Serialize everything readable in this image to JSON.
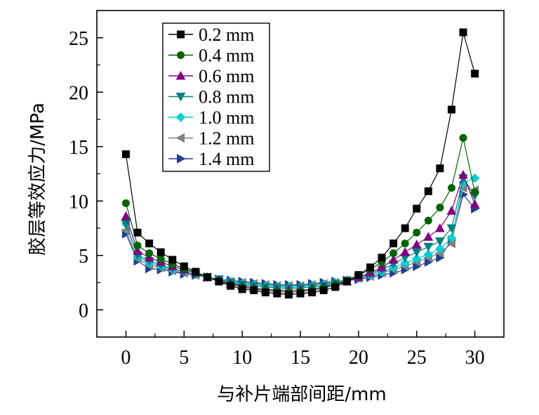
{
  "chart_data": {
    "type": "line",
    "xlabel": "与补片端部间距/mm",
    "ylabel": "胶层等效应力/MPa",
    "xlim": [
      -2.5,
      32.5
    ],
    "ylim": [
      -2.5,
      27.5
    ],
    "xticks": [
      0,
      5,
      10,
      15,
      20,
      25,
      30
    ],
    "yticks": [
      0,
      5,
      10,
      15,
      20,
      25
    ],
    "grid": false,
    "legend_position": "top-left",
    "x": [
      0,
      1,
      2,
      3,
      4,
      5,
      6,
      7,
      8,
      9,
      10,
      11,
      12,
      13,
      14,
      15,
      16,
      17,
      18,
      19,
      20,
      21,
      22,
      23,
      24,
      25,
      26,
      27,
      28,
      29,
      30
    ],
    "series": [
      {
        "name": "0.2 mm",
        "color": "#000000",
        "marker": "square",
        "values": [
          14.3,
          7.1,
          6.1,
          5.3,
          4.6,
          4.0,
          3.5,
          3.0,
          2.6,
          2.2,
          1.9,
          1.8,
          1.6,
          1.5,
          1.4,
          1.5,
          1.6,
          1.8,
          2.1,
          2.6,
          3.2,
          3.9,
          4.8,
          6.1,
          7.5,
          9.3,
          10.9,
          13.0,
          18.4,
          25.5,
          21.7
        ]
      },
      {
        "name": "0.4 mm",
        "color": "#006400",
        "marker": "circle",
        "values": [
          9.8,
          5.9,
          5.2,
          4.7,
          4.2,
          3.8,
          3.4,
          3.0,
          2.6,
          2.3,
          2.1,
          1.9,
          1.8,
          1.7,
          1.6,
          1.7,
          1.8,
          2.0,
          2.3,
          2.7,
          3.2,
          3.7,
          4.4,
          5.2,
          6.1,
          7.1,
          8.2,
          9.4,
          11.2,
          15.8,
          10.8
        ]
      },
      {
        "name": "0.6 mm",
        "color": "#800080",
        "marker": "triangle-up",
        "values": [
          8.6,
          5.4,
          4.8,
          4.4,
          4.0,
          3.7,
          3.4,
          3.0,
          2.7,
          2.4,
          2.2,
          2.0,
          1.9,
          1.8,
          1.8,
          1.8,
          1.9,
          2.1,
          2.3,
          2.6,
          3.0,
          3.4,
          3.9,
          4.6,
          5.3,
          6.0,
          6.7,
          7.5,
          9.1,
          12.4,
          9.7
        ]
      },
      {
        "name": "0.8 mm",
        "color": "#008080",
        "marker": "triangle-down",
        "values": [
          7.9,
          5.0,
          4.5,
          4.1,
          3.8,
          3.5,
          3.3,
          3.0,
          2.8,
          2.5,
          2.3,
          2.2,
          2.1,
          2.0,
          2.0,
          2.0,
          2.1,
          2.2,
          2.4,
          2.7,
          3.0,
          3.3,
          3.7,
          4.2,
          4.8,
          5.3,
          5.8,
          6.3,
          7.5,
          12.1,
          10.5
        ]
      },
      {
        "name": "1.0 mm",
        "color": "#00CED1",
        "marker": "diamond",
        "values": [
          7.9,
          4.9,
          4.3,
          4.0,
          3.7,
          3.5,
          3.3,
          3.0,
          2.8,
          2.6,
          2.4,
          2.3,
          2.2,
          2.1,
          2.1,
          2.1,
          2.2,
          2.3,
          2.5,
          2.7,
          2.9,
          3.2,
          3.5,
          3.9,
          4.3,
          4.7,
          5.1,
          5.6,
          6.6,
          11.7,
          12.1
        ]
      },
      {
        "name": "1.2 mm",
        "color": "#808080",
        "marker": "triangle-left",
        "values": [
          7.3,
          4.7,
          4.1,
          3.9,
          3.6,
          3.4,
          3.2,
          3.0,
          2.8,
          2.6,
          2.5,
          2.4,
          2.3,
          2.2,
          2.2,
          2.2,
          2.3,
          2.4,
          2.5,
          2.7,
          2.9,
          3.1,
          3.4,
          3.7,
          4.0,
          4.4,
          4.8,
          5.2,
          6.1,
          11.2,
          11.0
        ]
      },
      {
        "name": "1.4 mm",
        "color": "#1F3F8F",
        "marker": "triangle-right",
        "values": [
          7.0,
          4.5,
          3.8,
          3.7,
          3.5,
          3.3,
          3.2,
          3.0,
          2.8,
          2.7,
          2.6,
          2.5,
          2.4,
          2.3,
          2.3,
          2.3,
          2.4,
          2.5,
          2.6,
          2.7,
          2.8,
          3.0,
          3.2,
          3.4,
          3.7,
          4.0,
          4.4,
          4.8,
          6.4,
          10.6,
          9.3
        ]
      }
    ]
  }
}
